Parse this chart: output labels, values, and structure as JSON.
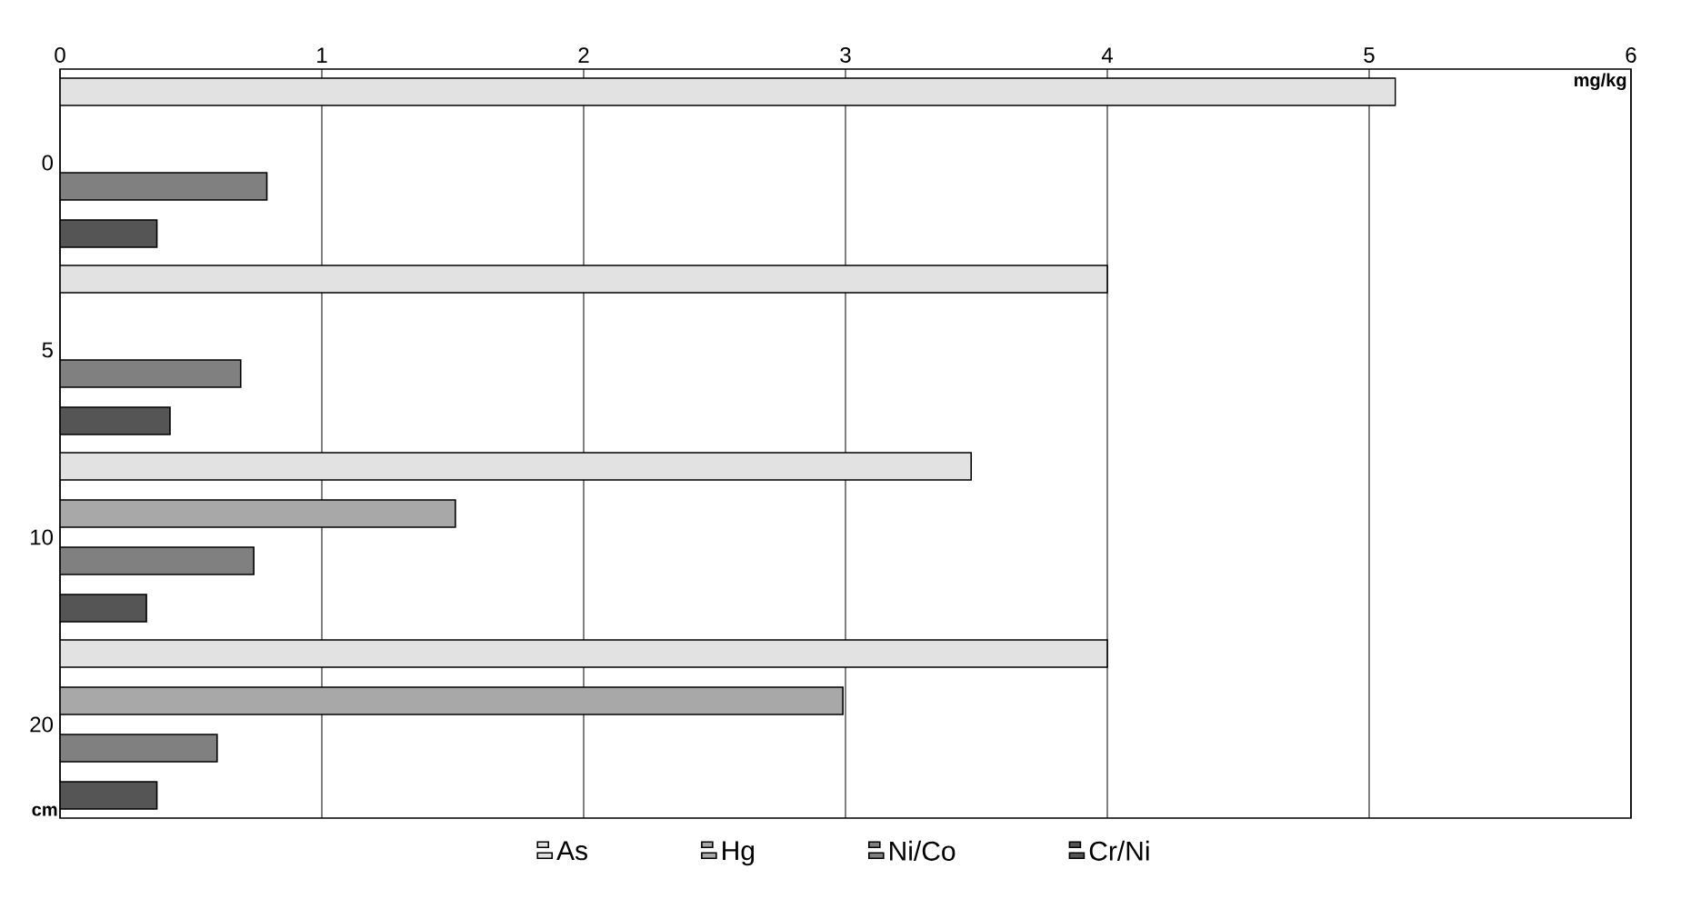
{
  "chart_data": {
    "type": "bar",
    "orientation": "horizontal",
    "xlabel": "mg/kg",
    "ylabel": "cm",
    "categories": [
      "0",
      "5",
      "10",
      "20"
    ],
    "series": [
      {
        "name": "As",
        "color": "#e2e2e2",
        "values": [
          5.1,
          4.0,
          3.48,
          4.0
        ]
      },
      {
        "name": "Hg",
        "color": "#a8a8a8",
        "values": [
          null,
          null,
          1.51,
          2.99
        ]
      },
      {
        "name": "Ni/Co",
        "color": "#808080",
        "values": [
          0.79,
          0.69,
          0.74,
          0.6
        ]
      },
      {
        "name": "Cr/Ni",
        "color": "#555555",
        "values": [
          0.37,
          0.42,
          0.33,
          0.37
        ]
      }
    ],
    "xlim": [
      0,
      6
    ],
    "xticks": [
      0,
      1,
      2,
      3,
      4,
      5,
      6
    ],
    "grid": "x",
    "legend": "bottom"
  }
}
